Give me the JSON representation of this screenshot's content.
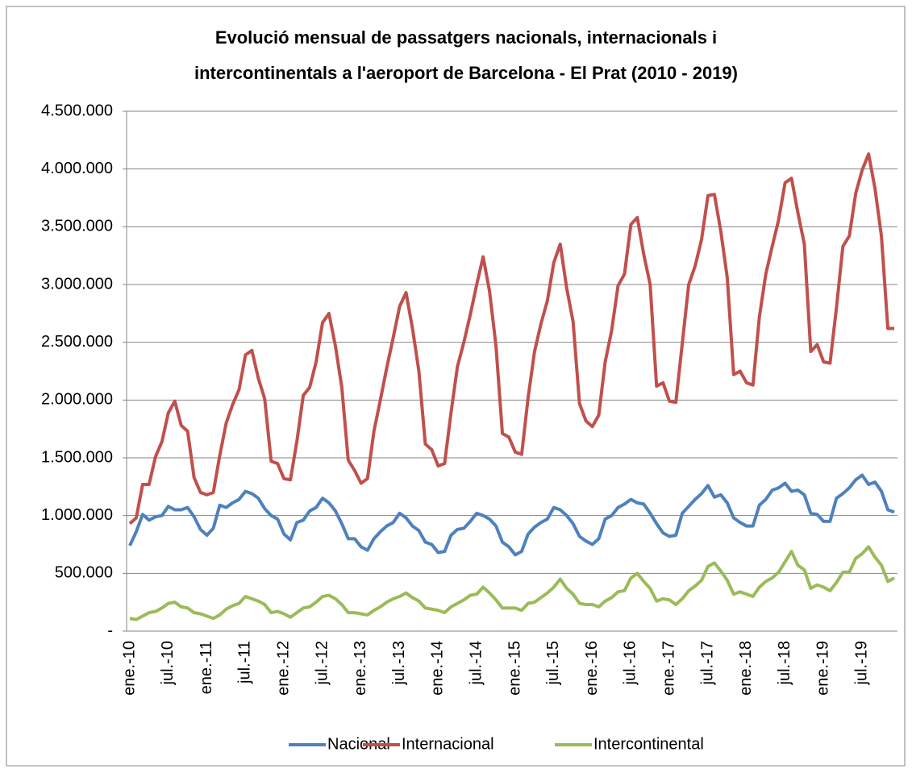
{
  "chart_data": {
    "type": "line",
    "title": [
      "Evolució mensual de passatgers nacionals, internacionals i",
      "intercontinentals a l'aeroport de Barcelona - El Prat (2010 - 2019)"
    ],
    "categories": [
      "ene.-10",
      null,
      null,
      null,
      null,
      null,
      "jul.-10",
      null,
      null,
      null,
      null,
      null,
      "ene.-11",
      null,
      null,
      null,
      null,
      null,
      "jul.-11",
      null,
      null,
      null,
      null,
      null,
      "ene.-12",
      null,
      null,
      null,
      null,
      null,
      "jul.-12",
      null,
      null,
      null,
      null,
      null,
      "ene.-13",
      null,
      null,
      null,
      null,
      null,
      "jul.-13",
      null,
      null,
      null,
      null,
      null,
      "ene.-14",
      null,
      null,
      null,
      null,
      null,
      "jul.-14",
      null,
      null,
      null,
      null,
      null,
      "ene.-15",
      null,
      null,
      null,
      null,
      null,
      "jul.-15",
      null,
      null,
      null,
      null,
      null,
      "ene.-16",
      null,
      null,
      null,
      null,
      null,
      "jul.-16",
      null,
      null,
      null,
      null,
      null,
      "ene.-17",
      null,
      null,
      null,
      null,
      null,
      "jul.-17",
      null,
      null,
      null,
      null,
      null,
      "ene.-18",
      null,
      null,
      null,
      null,
      null,
      "jul.-18",
      null,
      null,
      null,
      null,
      null,
      "ene.-19",
      null,
      null,
      null,
      null,
      null,
      "jul.-19",
      null,
      null,
      null,
      null,
      null
    ],
    "series": [
      {
        "name": "Nacional",
        "color": "#4f81bd",
        "values": [
          740000,
          860000,
          1010000,
          960000,
          990000,
          1000000,
          1080000,
          1050000,
          1050000,
          1070000,
          990000,
          880000,
          830000,
          890000,
          1090000,
          1070000,
          1110000,
          1140000,
          1210000,
          1190000,
          1150000,
          1060000,
          1000000,
          970000,
          840000,
          790000,
          940000,
          960000,
          1040000,
          1070000,
          1150000,
          1110000,
          1040000,
          930000,
          800000,
          800000,
          730000,
          700000,
          800000,
          860000,
          910000,
          940000,
          1020000,
          980000,
          910000,
          870000,
          770000,
          750000,
          680000,
          690000,
          830000,
          880000,
          890000,
          950000,
          1020000,
          1000000,
          970000,
          910000,
          770000,
          730000,
          660000,
          690000,
          840000,
          900000,
          940000,
          970000,
          1070000,
          1050000,
          1000000,
          930000,
          820000,
          780000,
          750000,
          800000,
          970000,
          1000000,
          1070000,
          1100000,
          1140000,
          1110000,
          1100000,
          1020000,
          930000,
          850000,
          820000,
          830000,
          1020000,
          1080000,
          1140000,
          1190000,
          1260000,
          1160000,
          1180000,
          1110000,
          980000,
          940000,
          910000,
          910000,
          1090000,
          1140000,
          1220000,
          1240000,
          1280000,
          1210000,
          1220000,
          1180000,
          1020000,
          1010000,
          950000,
          950000,
          1150000,
          1190000,
          1240000,
          1310000,
          1350000,
          1270000,
          1290000,
          1210000,
          1050000,
          1030000
        ]
      },
      {
        "name": "Internacional",
        "color": "#c0504d",
        "values": [
          930000,
          980000,
          1270000,
          1270000,
          1510000,
          1640000,
          1890000,
          1990000,
          1780000,
          1730000,
          1330000,
          1200000,
          1180000,
          1200000,
          1520000,
          1800000,
          1960000,
          2090000,
          2390000,
          2430000,
          2190000,
          2010000,
          1470000,
          1450000,
          1320000,
          1310000,
          1640000,
          2040000,
          2110000,
          2330000,
          2670000,
          2750000,
          2470000,
          2110000,
          1480000,
          1390000,
          1280000,
          1320000,
          1730000,
          2000000,
          2280000,
          2540000,
          2810000,
          2930000,
          2620000,
          2250000,
          1620000,
          1570000,
          1430000,
          1450000,
          1890000,
          2290000,
          2500000,
          2740000,
          3000000,
          3240000,
          2940000,
          2470000,
          1710000,
          1680000,
          1550000,
          1530000,
          2020000,
          2420000,
          2660000,
          2860000,
          3190000,
          3350000,
          2970000,
          2680000,
          1970000,
          1820000,
          1770000,
          1870000,
          2330000,
          2600000,
          2990000,
          3090000,
          3520000,
          3580000,
          3260000,
          3000000,
          2120000,
          2150000,
          1990000,
          1980000,
          2490000,
          3000000,
          3160000,
          3390000,
          3770000,
          3780000,
          3460000,
          3060000,
          2220000,
          2250000,
          2150000,
          2130000,
          2720000,
          3090000,
          3330000,
          3560000,
          3880000,
          3920000,
          3620000,
          3350000,
          2420000,
          2480000,
          2330000,
          2320000,
          2800000,
          3330000,
          3420000,
          3790000,
          3990000,
          4130000,
          3830000,
          3420000,
          2620000,
          2620000
        ]
      },
      {
        "name": "Intercontinental",
        "color": "#9bbb59",
        "values": [
          110000,
          100000,
          130000,
          160000,
          170000,
          200000,
          240000,
          250000,
          210000,
          200000,
          160000,
          150000,
          130000,
          110000,
          140000,
          190000,
          220000,
          240000,
          300000,
          280000,
          260000,
          230000,
          160000,
          170000,
          150000,
          120000,
          160000,
          200000,
          210000,
          250000,
          300000,
          310000,
          280000,
          230000,
          160000,
          160000,
          150000,
          140000,
          180000,
          210000,
          250000,
          280000,
          300000,
          330000,
          290000,
          260000,
          200000,
          190000,
          180000,
          160000,
          210000,
          240000,
          270000,
          310000,
          320000,
          380000,
          330000,
          270000,
          200000,
          200000,
          200000,
          180000,
          240000,
          250000,
          290000,
          330000,
          380000,
          450000,
          370000,
          320000,
          240000,
          230000,
          230000,
          210000,
          260000,
          290000,
          340000,
          350000,
          460000,
          500000,
          430000,
          370000,
          260000,
          280000,
          270000,
          230000,
          280000,
          350000,
          390000,
          440000,
          560000,
          590000,
          520000,
          440000,
          320000,
          340000,
          320000,
          300000,
          380000,
          430000,
          460000,
          510000,
          600000,
          690000,
          570000,
          530000,
          370000,
          400000,
          380000,
          350000,
          420000,
          510000,
          510000,
          630000,
          670000,
          730000,
          640000,
          570000,
          430000,
          460000
        ]
      }
    ],
    "ylim": [
      0,
      4500000
    ],
    "yticks": [
      {
        "value": 0,
        "label": "-"
      },
      {
        "value": 500000,
        "label": "500.000"
      },
      {
        "value": 1000000,
        "label": "1.000.000"
      },
      {
        "value": 1500000,
        "label": "1.500.000"
      },
      {
        "value": 2000000,
        "label": "2.000.000"
      },
      {
        "value": 2500000,
        "label": "2.500.000"
      },
      {
        "value": 3000000,
        "label": "3.000.000"
      },
      {
        "value": 3500000,
        "label": "3.500.000"
      },
      {
        "value": 4000000,
        "label": "4.000.000"
      },
      {
        "value": 4500000,
        "label": "4.500.000"
      }
    ],
    "grid": true,
    "legend": "bottom"
  }
}
